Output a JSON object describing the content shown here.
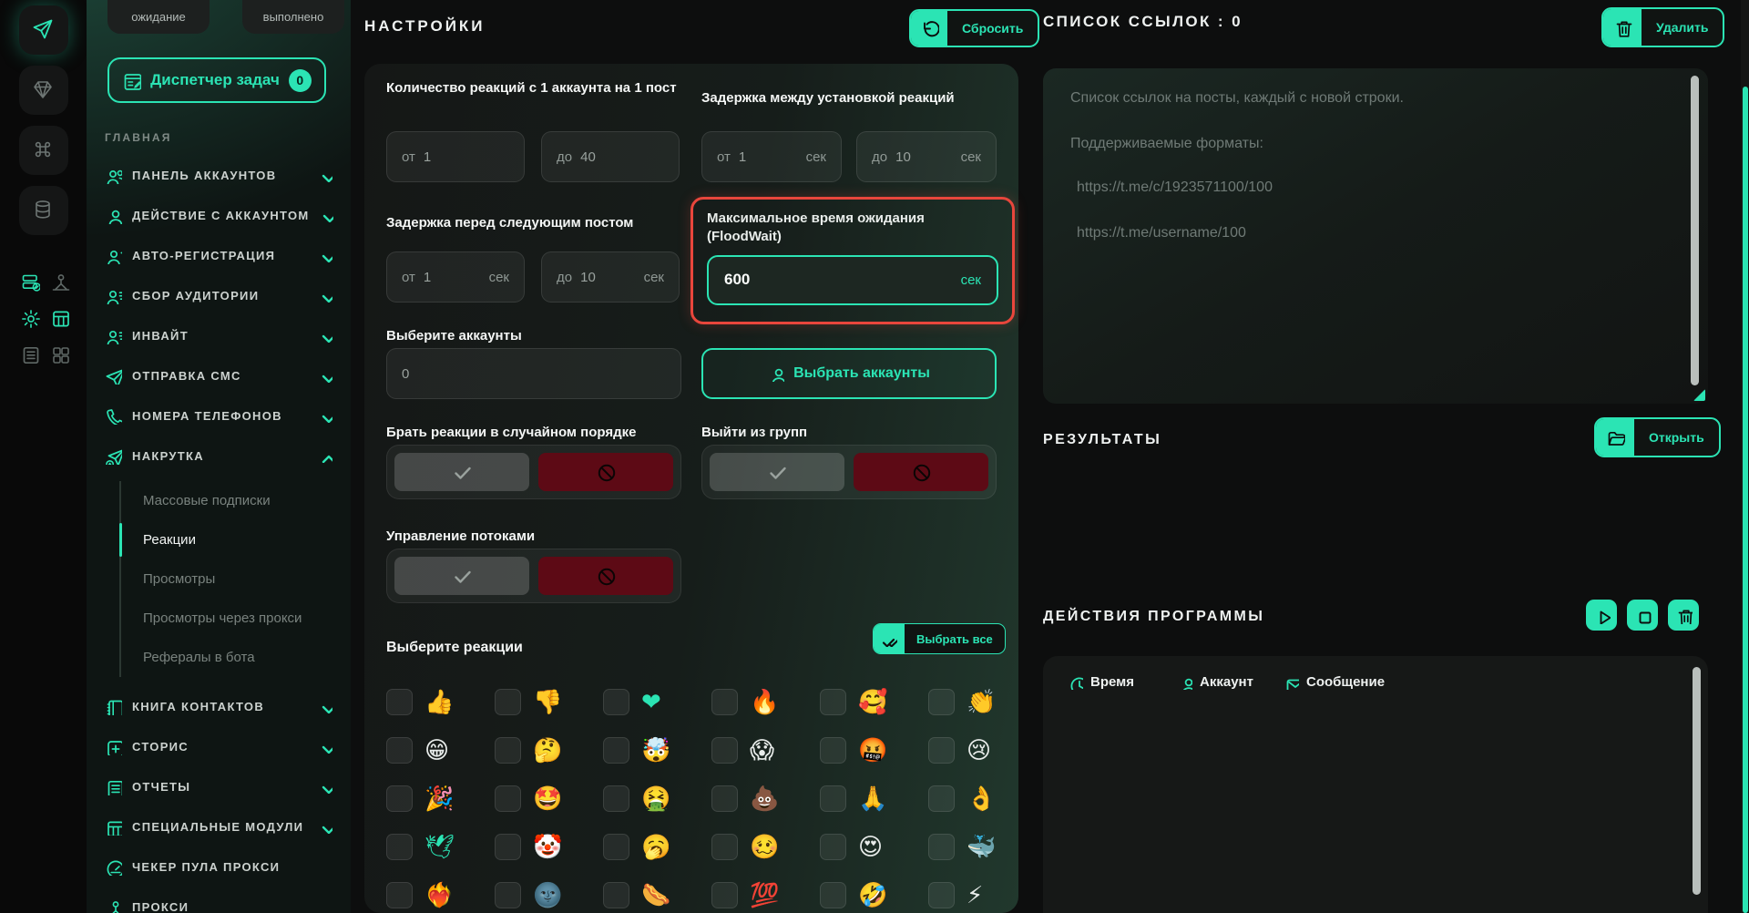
{
  "colors": {
    "accent": "#2be4b4",
    "danger_highlight": "#e8463c",
    "toggle_no": "#5d0a15"
  },
  "rail": {
    "buttons": [
      {
        "icon": "send-icon",
        "active": true
      },
      {
        "icon": "diamond-icon",
        "active": false
      },
      {
        "icon": "command-icon",
        "active": false
      },
      {
        "icon": "database-icon",
        "active": false
      }
    ],
    "mini_icons": [
      {
        "icon": "server-check-icon",
        "tone": "teal"
      },
      {
        "icon": "user-node-icon",
        "tone": "gray"
      },
      {
        "icon": "gear-icon",
        "tone": "teal"
      },
      {
        "icon": "browser-card-icon",
        "tone": "teal"
      },
      {
        "icon": "document-list-icon",
        "tone": "gray"
      },
      {
        "icon": "layout-grid-icon",
        "tone": "gray"
      }
    ]
  },
  "sidebar": {
    "tabs": [
      {
        "label": "ожидание"
      },
      {
        "label": "выполнено"
      }
    ],
    "task_manager": {
      "label": "Диспетчер задач",
      "badge": "0"
    },
    "section_label": "ГЛАВНАЯ",
    "items": [
      {
        "label": "ПАНЕЛЬ АККАУНТОВ",
        "icon": "users",
        "chevron": "down"
      },
      {
        "label": "ДЕЙСТВИЕ С АККАУНТОМ",
        "icon": "user",
        "chevron": "down"
      },
      {
        "label": "АВТО-РЕГИСТРАЦИЯ",
        "icon": "user-plus",
        "chevron": "down"
      },
      {
        "label": "СБОР АУДИТОРИИ",
        "icon": "user-list",
        "chevron": "down"
      },
      {
        "label": "ИНВАЙТ",
        "icon": "user-list",
        "chevron": "down"
      },
      {
        "label": "ОТПРАВКА СМС",
        "icon": "send",
        "chevron": "down"
      },
      {
        "label": "НОМЕРА ТЕЛЕФОНОВ",
        "icon": "phone",
        "chevron": "down"
      },
      {
        "label": "НАКРУТКА",
        "icon": "send-plus",
        "chevron": "up",
        "submenu": [
          {
            "label": "Массовые подписки",
            "active": false
          },
          {
            "label": "Реакции",
            "active": true
          },
          {
            "label": "Просмотры",
            "active": false
          },
          {
            "label": "Просмотры через прокси",
            "active": false
          },
          {
            "label": "Рефералы в бота",
            "active": false
          }
        ]
      },
      {
        "label": "КНИГА КОНТАКТОВ",
        "icon": "book",
        "chevron": "down"
      },
      {
        "label": "СТОРИС",
        "icon": "plus-square",
        "chevron": "down"
      },
      {
        "label": "ОТЧЕТЫ",
        "icon": "report",
        "chevron": "down"
      },
      {
        "label": "СПЕЦИАЛЬНЫЕ МОДУЛИ",
        "icon": "modules",
        "chevron": "down"
      },
      {
        "label": "ЧЕКЕР ПУЛА ПРОКСИ",
        "icon": "gauge",
        "chevron": "none"
      },
      {
        "label": "ПРОКСИ",
        "icon": "user-node",
        "chevron": "none"
      }
    ]
  },
  "settings": {
    "title": "НАСТРОЙКИ",
    "reset_button": "Сбросить",
    "reactions_per_account": {
      "label": "Количество реакций с 1 аккаунта на 1 пост",
      "from": {
        "prefix": "от",
        "value": "1"
      },
      "to": {
        "prefix": "до",
        "value": "40"
      }
    },
    "delay_between_reactions": {
      "label": "Задержка между установкой реакций",
      "from": {
        "prefix": "от",
        "value": "1",
        "unit": "сек"
      },
      "to": {
        "prefix": "до",
        "value": "10",
        "unit": "сек"
      }
    },
    "delay_before_next_post": {
      "label": "Задержка перед следующим постом",
      "from": {
        "prefix": "от",
        "value": "1",
        "unit": "сек"
      },
      "to": {
        "prefix": "до",
        "value": "10",
        "unit": "сек"
      }
    },
    "floodwait": {
      "label": "Максимальное время ожидания (FloodWait)",
      "value": "600",
      "unit": "сек",
      "highlighted": true
    },
    "accounts": {
      "label": "Выберите аккаунты",
      "count_value": "0",
      "button": "Выбрать аккаунты"
    },
    "toggles": [
      {
        "label": "Брать реакции в случайном порядке",
        "state": "no"
      },
      {
        "label": "Выйти из групп",
        "state": "no"
      },
      {
        "label": "Управление потоками",
        "state": "no"
      }
    ],
    "reactions": {
      "label": "Выберите реакции",
      "select_all_button": "Выбрать все",
      "emojis": [
        "👍",
        "👎",
        "❤",
        "🔥",
        "🥰",
        "👏",
        "😁",
        "🤔",
        "🤯",
        "😱",
        "🤬",
        "😢",
        "🎉",
        "🤩",
        "🤮",
        "💩",
        "🙏",
        "👌",
        "🕊",
        "🤡",
        "🥱",
        "🥴",
        "😍",
        "🐳",
        "❤️‍🔥",
        "🌚",
        "🌭",
        "💯",
        "🤣",
        "⚡"
      ],
      "tinted_indices": [
        2,
        18
      ]
    }
  },
  "links_panel": {
    "title": "СПИСОК ССЫЛОК : 0",
    "delete_button": "Удалить",
    "placeholder_lines": [
      "Список ссылок на посты, каждый с новой строки.",
      "Поддерживаемые форматы:",
      "https://t.me/c/1923571100/100",
      "https://t.me/username/100"
    ]
  },
  "results_panel": {
    "title": "РЕЗУЛЬТАТЫ",
    "open_button": "Открыть"
  },
  "actions_panel": {
    "title": "ДЕЙСТВИЯ ПРОГРАММЫ",
    "columns": [
      {
        "label": "Время",
        "icon": "clock"
      },
      {
        "label": "Аккаунт",
        "icon": "user"
      },
      {
        "label": "Сообщение",
        "icon": "mail"
      }
    ]
  }
}
